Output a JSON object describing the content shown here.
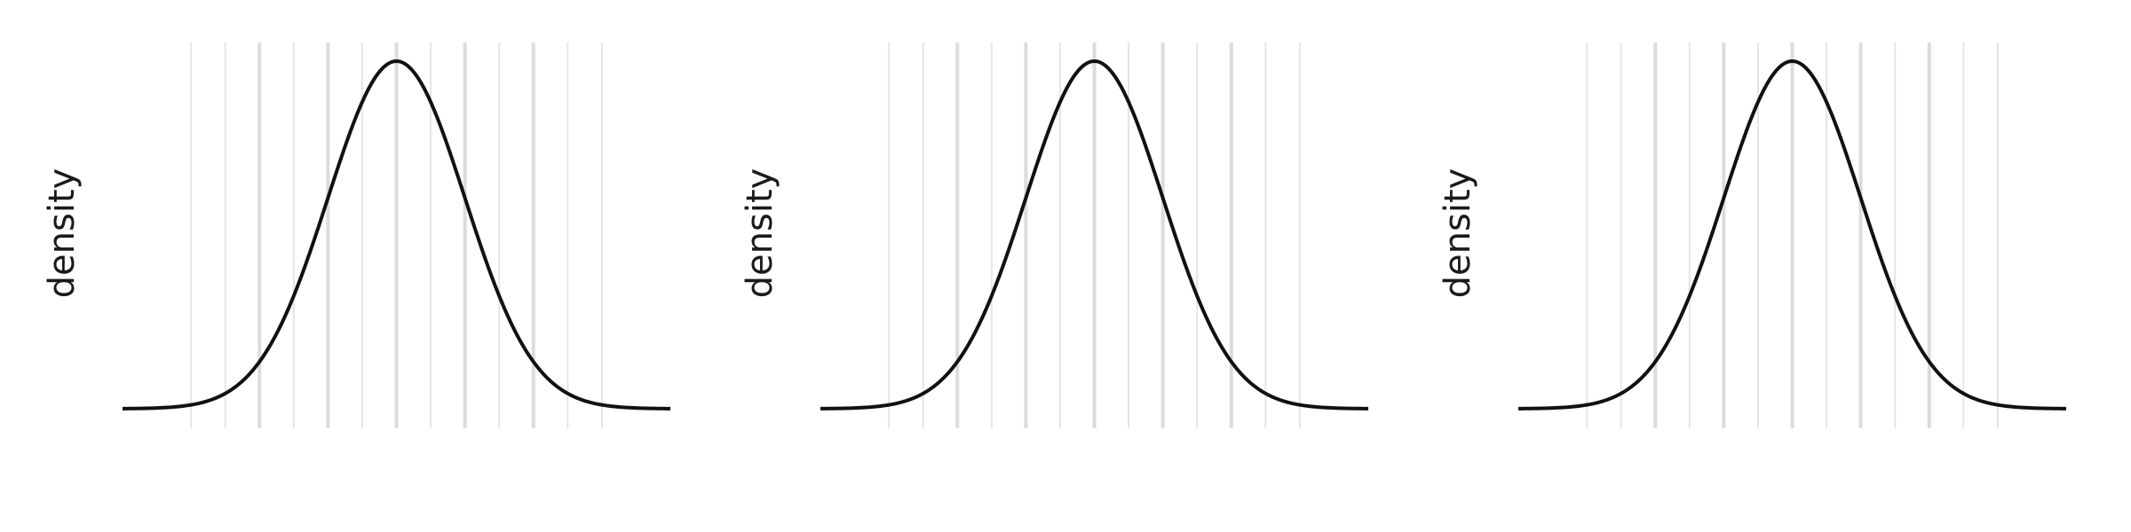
{
  "chart_data": [
    {
      "type": "line",
      "title": "",
      "xlabel": "",
      "ylabel": "density",
      "xlim": [
        -4,
        4
      ],
      "ylim": [
        0,
        0.4
      ],
      "grid": "vertical lines only",
      "series": [
        {
          "x": [
            -4,
            -3.5,
            -3,
            -2.5,
            -2,
            -1.5,
            -1,
            -0.5,
            0,
            0.5,
            1,
            1.5,
            2,
            2.5,
            3,
            3.5,
            4
          ],
          "y": [
            0.0001,
            0.0009,
            0.0044,
            0.0175,
            0.054,
            0.1295,
            0.242,
            0.3521,
            0.3989,
            0.3521,
            0.242,
            0.1295,
            0.054,
            0.0175,
            0.0044,
            0.0009,
            0.0001
          ]
        }
      ]
    },
    {
      "type": "line",
      "title": "",
      "xlabel": "",
      "ylabel": "density",
      "xlim": [
        -4,
        4
      ],
      "ylim": [
        0,
        0.4
      ],
      "grid": "vertical lines only",
      "series": [
        {
          "x": [
            -4,
            -3.5,
            -3,
            -2.5,
            -2,
            -1.5,
            -1,
            -0.5,
            0,
            0.5,
            1,
            1.5,
            2,
            2.5,
            3,
            3.5,
            4
          ],
          "y": [
            0.0001,
            0.0009,
            0.0044,
            0.0175,
            0.054,
            0.1295,
            0.242,
            0.3521,
            0.3989,
            0.3521,
            0.242,
            0.1295,
            0.054,
            0.0175,
            0.0044,
            0.0009,
            0.0001
          ]
        }
      ]
    },
    {
      "type": "line",
      "title": "",
      "xlabel": "",
      "ylabel": "density",
      "xlim": [
        -4,
        4
      ],
      "ylim": [
        0,
        0.4
      ],
      "grid": "vertical lines only",
      "series": [
        {
          "x": [
            -4,
            -3.5,
            -3,
            -2.5,
            -2,
            -1.5,
            -1,
            -0.5,
            0,
            0.5,
            1,
            1.5,
            2,
            2.5,
            3,
            3.5,
            4
          ],
          "y": [
            0.0001,
            0.0009,
            0.0044,
            0.0175,
            0.054,
            0.1295,
            0.242,
            0.3521,
            0.3989,
            0.3521,
            0.242,
            0.1295,
            0.054,
            0.0175,
            0.0044,
            0.0009,
            0.0001
          ]
        }
      ]
    }
  ],
  "colors": {
    "curve": "#111111",
    "grid": "#e5e5e5",
    "background": "#ffffff"
  }
}
